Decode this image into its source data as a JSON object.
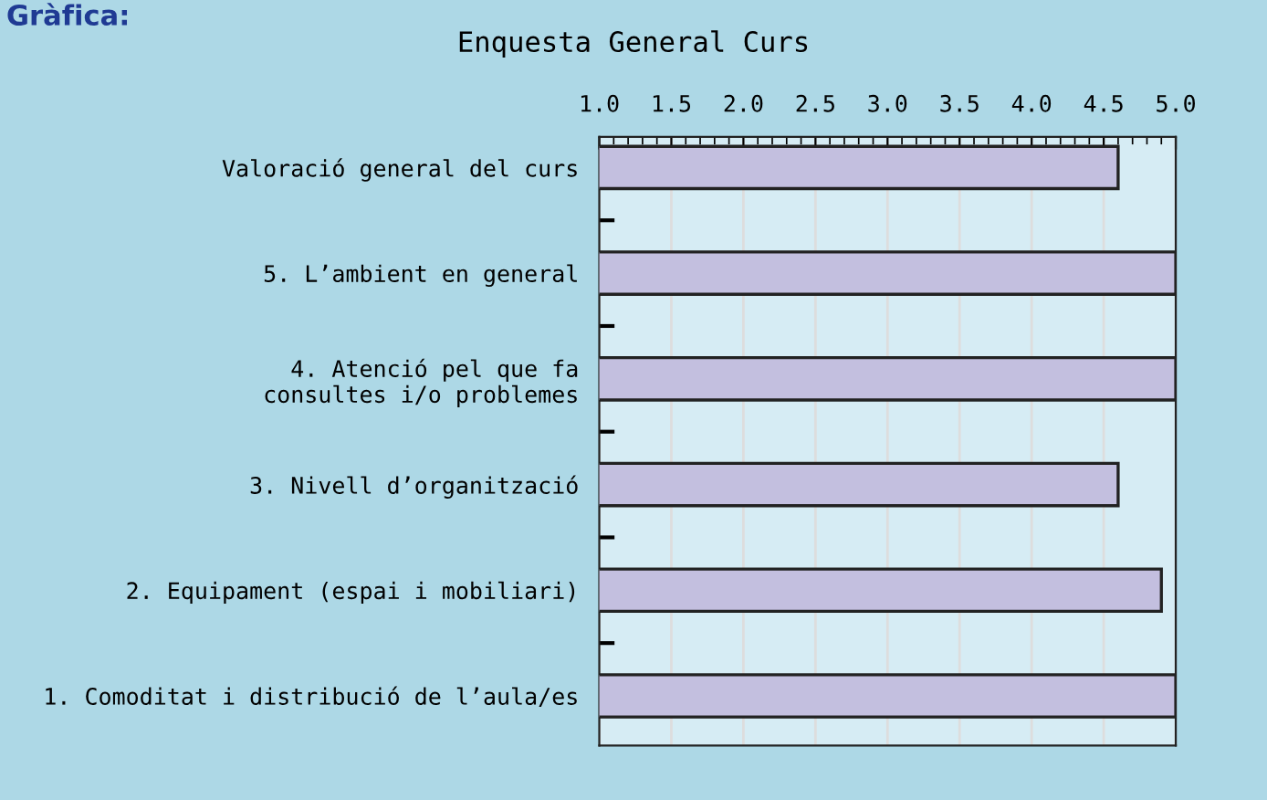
{
  "chart_data": {
    "type": "bar",
    "orientation": "horizontal",
    "title": "Enquesta General Curs",
    "annotations": [
      "Gràfica:"
    ],
    "categories": [
      "Valoració general del curs",
      "5. L’ambient en general",
      "4. Atenció pel que fa\n   consultes i/o problemes",
      "3. Nivell d’organització",
      "2. Equipament (espai i mobiliari)",
      "1. Comoditat i distribució de l’aula/es"
    ],
    "values": [
      4.6,
      5.0,
      5.0,
      4.6,
      4.9,
      5.0
    ],
    "color": "#c3bfdf",
    "xlim": [
      1.0,
      5.0
    ],
    "xticks": [
      {
        "value": 1.0,
        "label": "1.0"
      },
      {
        "value": 1.5,
        "label": "1.5"
      },
      {
        "value": 2.0,
        "label": "2.0"
      },
      {
        "value": 2.5,
        "label": "2.5"
      },
      {
        "value": 3.0,
        "label": "3.0"
      },
      {
        "value": 3.5,
        "label": "3.5"
      },
      {
        "value": 4.0,
        "label": "4.0"
      },
      {
        "value": 4.5,
        "label": "4.5"
      },
      {
        "value": 5.0,
        "label": "5.0"
      }
    ],
    "grid": "x",
    "legend": false
  }
}
